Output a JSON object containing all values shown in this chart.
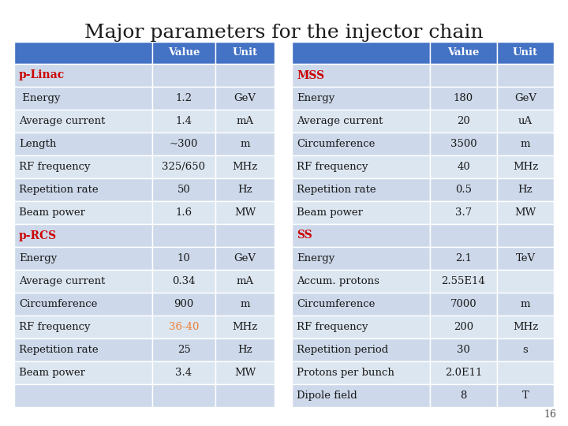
{
  "title": "Major parameters for the injector chain",
  "title_fontsize": 18,
  "background_color": "#ffffff",
  "header_bg": "#4472C4",
  "header_fg": "#ffffff",
  "row_bg_even": "#cdd9ea",
  "row_bg_odd": "#dce6f1",
  "page_number": "16",
  "left_table": {
    "headers": [
      "",
      "Value",
      "Unit"
    ],
    "rows": [
      {
        "cells": [
          "p-Linac",
          "",
          ""
        ],
        "type": "section",
        "color": "#cc0000"
      },
      {
        "cells": [
          " Energy",
          "1.2",
          "GeV"
        ],
        "type": "data"
      },
      {
        "cells": [
          "Average current",
          "1.4",
          "mA"
        ],
        "type": "data"
      },
      {
        "cells": [
          "Length",
          "~300",
          "m"
        ],
        "type": "data"
      },
      {
        "cells": [
          "RF frequency",
          "325/650",
          "MHz"
        ],
        "type": "data"
      },
      {
        "cells": [
          "Repetition rate",
          "50",
          "Hz"
        ],
        "type": "data"
      },
      {
        "cells": [
          "Beam power",
          "1.6",
          "MW"
        ],
        "type": "data"
      },
      {
        "cells": [
          "p-RCS",
          "",
          ""
        ],
        "type": "section",
        "color": "#cc0000"
      },
      {
        "cells": [
          "Energy",
          "10",
          "GeV"
        ],
        "type": "data"
      },
      {
        "cells": [
          "Average current",
          "0.34",
          "mA"
        ],
        "type": "data"
      },
      {
        "cells": [
          "Circumference",
          "900",
          "m"
        ],
        "type": "data"
      },
      {
        "cells": [
          "RF frequency",
          "36-40",
          "MHz"
        ],
        "type": "data",
        "value_color": "#ed7d31"
      },
      {
        "cells": [
          "Repetition rate",
          "25",
          "Hz"
        ],
        "type": "data"
      },
      {
        "cells": [
          "Beam power",
          "3.4",
          "MW"
        ],
        "type": "data"
      },
      {
        "cells": [
          "",
          "",
          ""
        ],
        "type": "empty"
      }
    ]
  },
  "right_table": {
    "headers": [
      "",
      "Value",
      "Unit"
    ],
    "rows": [
      {
        "cells": [
          "MSS",
          "",
          ""
        ],
        "type": "section",
        "color": "#cc0000"
      },
      {
        "cells": [
          "Energy",
          "180",
          "GeV"
        ],
        "type": "data"
      },
      {
        "cells": [
          "Average current",
          "20",
          "uA"
        ],
        "type": "data"
      },
      {
        "cells": [
          "Circumference",
          "3500",
          "m"
        ],
        "type": "data"
      },
      {
        "cells": [
          "RF frequency",
          "40",
          "MHz"
        ],
        "type": "data"
      },
      {
        "cells": [
          "Repetition rate",
          "0.5",
          "Hz"
        ],
        "type": "data"
      },
      {
        "cells": [
          "Beam power",
          "3.7",
          "MW"
        ],
        "type": "data"
      },
      {
        "cells": [
          "SS",
          "",
          ""
        ],
        "type": "section",
        "color": "#cc0000"
      },
      {
        "cells": [
          "Energy",
          "2.1",
          "TeV"
        ],
        "type": "data"
      },
      {
        "cells": [
          "Accum. protons",
          "2.55E14",
          ""
        ],
        "type": "data"
      },
      {
        "cells": [
          "Circumference",
          "7000",
          "m"
        ],
        "type": "data"
      },
      {
        "cells": [
          "RF frequency",
          "200",
          "MHz"
        ],
        "type": "data"
      },
      {
        "cells": [
          "Repetition period",
          "30",
          "s"
        ],
        "type": "data"
      },
      {
        "cells": [
          "Protons per bunch",
          "2.0E11",
          ""
        ],
        "type": "data"
      },
      {
        "cells": [
          "Dipole field",
          "8",
          "T"
        ],
        "type": "data"
      }
    ]
  }
}
